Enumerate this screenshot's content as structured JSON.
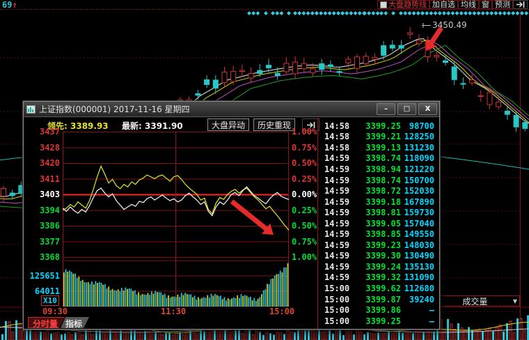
{
  "top_bar": {
    "counter": "69",
    "counter_arrow": "↑",
    "trend_label": "大盘趋势线",
    "menu_items": [
      "加自选",
      "均线",
      "窗",
      "预测"
    ]
  },
  "background": {
    "peak_annotation": "3450.49",
    "volume_selector": "成交量",
    "volume_caret": "▼"
  },
  "popup": {
    "title": "上证指数(000001) 2017-11-16 星期四",
    "window_controls": [
      "–",
      "□",
      "X"
    ],
    "quote": {
      "lead_label": "领先:",
      "lead_value": "3389.93",
      "last_label": "最新:",
      "last_value": "3391.90"
    },
    "action_buttons": [
      "大盘异动",
      "历史重现"
    ],
    "price_axis": [
      {
        "label": "3437",
        "color": "#e23333"
      },
      {
        "label": "3428",
        "color": "#e23333"
      },
      {
        "label": "3420",
        "color": "#e23333"
      },
      {
        "label": "3411",
        "color": "#e23333"
      },
      {
        "label": "3403",
        "color": "#ffffff"
      },
      {
        "label": "3394",
        "color": "#00dd33"
      },
      {
        "label": "3386",
        "color": "#00dd33"
      },
      {
        "label": "3377",
        "color": "#00dd33"
      },
      {
        "label": "3368",
        "color": "#00dd33"
      }
    ],
    "pct_axis": [
      {
        "label": "1.00%",
        "color": "#e23333"
      },
      {
        "label": "0.75%",
        "color": "#e23333"
      },
      {
        "label": "0.50%",
        "color": "#e23333"
      },
      {
        "label": "0.25%",
        "color": "#e23333"
      },
      {
        "label": "0.00%",
        "color": "#ffffff"
      },
      {
        "label": "0.25%",
        "color": "#00dd33"
      },
      {
        "label": "0.50%",
        "color": "#00dd33"
      },
      {
        "label": "0.75%",
        "color": "#00dd33"
      },
      {
        "label": "1.00%",
        "color": "#00dd33"
      }
    ],
    "volume_axis": [
      "125651",
      "64011"
    ],
    "volume_scale": "X10",
    "time_axis": [
      "09:30",
      "11:30",
      "15:00"
    ],
    "tabs": [
      {
        "label": "分时量",
        "active": true
      },
      {
        "label": "指标",
        "active": false
      }
    ],
    "table_rows": [
      [
        "14:58",
        "3399.25",
        "98700"
      ],
      [
        "14:58",
        "3399.21",
        "128250"
      ],
      [
        "14:58",
        "3399.13",
        "131230"
      ],
      [
        "14:59",
        "3398.74",
        "118090"
      ],
      [
        "14:59",
        "3398.94",
        "121220"
      ],
      [
        "14:59",
        "3398.74",
        "150700"
      ],
      [
        "14:59",
        "3398.72",
        "152030"
      ],
      [
        "14:59",
        "3399.18",
        "167890"
      ],
      [
        "14:59",
        "3398.81",
        "159730"
      ],
      [
        "14:59",
        "3399.05",
        "157040"
      ],
      [
        "14:59",
        "3398.85",
        "149550"
      ],
      [
        "14:59",
        "3399.23",
        "148030"
      ],
      [
        "14:59",
        "3399.30",
        "130490"
      ],
      [
        "14:59",
        "3399.24",
        "135130"
      ],
      [
        "14:59",
        "3399.32",
        "131090"
      ],
      [
        "15:00",
        "3399.62",
        "112680"
      ],
      [
        "15:00",
        "3399.87",
        "39240"
      ],
      [
        "15:00",
        "3399.86",
        "—"
      ],
      [
        "15:00",
        "3399.25",
        "—"
      ]
    ]
  },
  "series": {
    "price_pct": [
      -0.22,
      -0.27,
      -0.2,
      -0.26,
      -0.3,
      -0.24,
      -0.28,
      -0.18,
      -0.05,
      0.06,
      0.1,
      0.02,
      -0.04,
      0.01,
      -0.1,
      -0.17,
      -0.24,
      -0.2,
      -0.16,
      -0.19,
      -0.11,
      -0.13,
      -0.07,
      -0.04,
      -0.09,
      -0.05,
      -0.01,
      -0.06,
      -0.1,
      -0.07,
      -0.12,
      -0.09,
      -0.02,
      0.02,
      -0.04,
      -0.09,
      -0.16,
      -0.12,
      -0.27,
      -0.34,
      -0.2,
      -0.12,
      -0.16,
      -0.09,
      0.0,
      0.03,
      -0.02,
      0.06,
      0.12,
      0.05,
      -0.02,
      -0.06,
      -0.11,
      -0.15,
      -0.07,
      -0.01,
      0.03,
      -0.03,
      -0.06,
      -0.08
    ],
    "avg_pct": [
      -0.25,
      -0.22,
      -0.16,
      -0.2,
      -0.12,
      -0.17,
      -0.22,
      -0.1,
      0.08,
      0.28,
      0.45,
      0.32,
      0.18,
      0.24,
      0.14,
      0.09,
      0.16,
      0.12,
      0.2,
      0.16,
      0.23,
      0.26,
      0.31,
      0.28,
      0.25,
      0.29,
      0.31,
      0.26,
      0.21,
      0.28,
      0.3,
      0.24,
      0.16,
      0.1,
      0.05,
      0.0,
      -0.09,
      -0.06,
      -0.24,
      -0.31,
      -0.14,
      -0.05,
      -0.08,
      0.0,
      0.05,
      0.08,
      0.02,
      0.07,
      0.1,
      0.03,
      -0.04,
      -0.09,
      -0.16,
      -0.23,
      -0.19,
      -0.27,
      -0.34,
      -0.42,
      -0.5,
      -0.57
    ]
  },
  "colors": {
    "up_red": "#cf3434",
    "down_cyan": "#27c7c7",
    "accent_yellow": "#d8d820",
    "tape_green": "#00e432",
    "tape_cyan": "#00d8ff"
  }
}
